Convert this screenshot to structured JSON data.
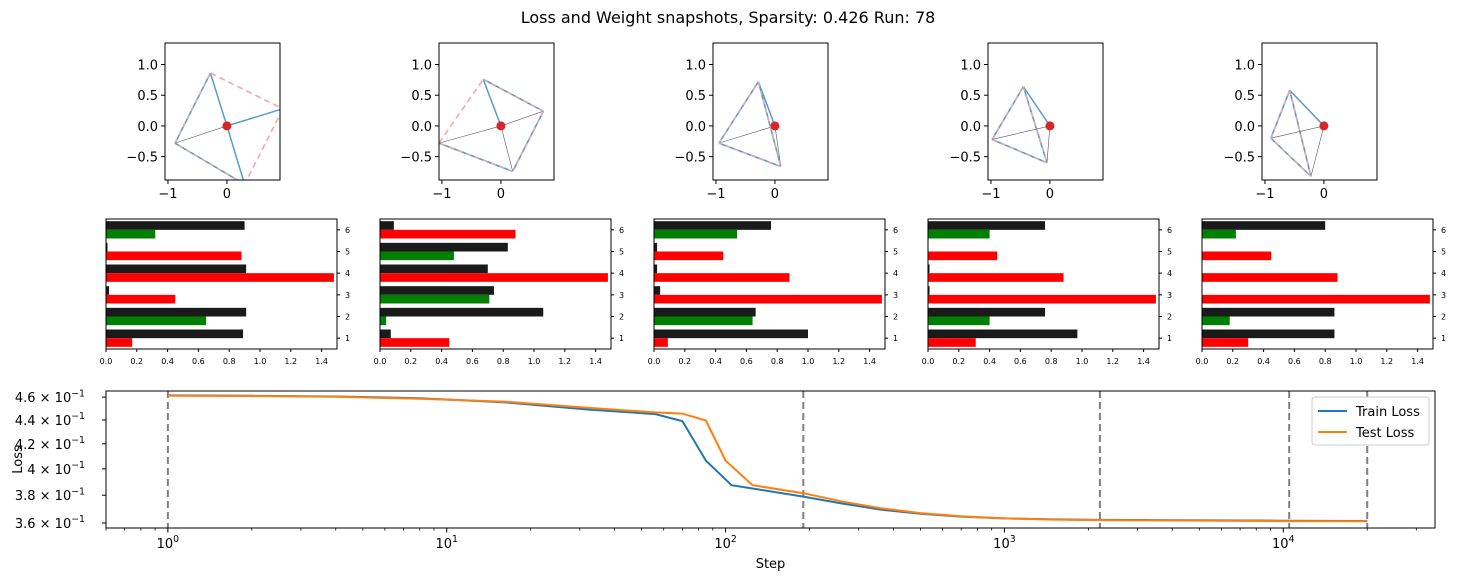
{
  "figure": {
    "title": "Loss and Weight snapshots, Sparsity: 0.426  Run: 78"
  },
  "chart_data": [
    {
      "type": "scatter",
      "name": "weight-polygon-snapshots",
      "xlim": [
        -1.05,
        0.9
      ],
      "ylim": [
        -0.88,
        1.35
      ],
      "xticks": [
        -1,
        0
      ],
      "yticks": [
        -0.5,
        0.0,
        0.5,
        1.0
      ],
      "ytick_labels": [
        "−0.5",
        "0.0",
        "0.5",
        "1.0"
      ],
      "xtick_labels": [
        "−1",
        "0"
      ],
      "colors": {
        "line": "#5b9bc9",
        "dashed": "#f7a6a6",
        "hub": "#d62728",
        "spoke": "#555555"
      },
      "snapshots": [
        {
          "points": [
            [
              -0.88,
              -0.28
            ],
            [
              -0.28,
              0.86
            ],
            [
              0.95,
              0.28
            ],
            [
              0.3,
              -0.95
            ]
          ],
          "dashed": [
            [
              1,
              2
            ],
            [
              2,
              3
            ]
          ],
          "solid": [
            [
              0,
              1
            ],
            [
              3,
              0
            ]
          ],
          "spokes_blue": [
            1,
            2,
            3
          ]
        },
        {
          "points": [
            [
              -1.05,
              -0.28
            ],
            [
              -0.3,
              0.76
            ],
            [
              0.72,
              0.24
            ],
            [
              0.2,
              -0.74
            ]
          ],
          "dashed": [
            [
              0,
              1
            ]
          ],
          "solid": [
            [
              1,
              2
            ],
            [
              2,
              3
            ],
            [
              3,
              0
            ]
          ],
          "spokes_blue": [
            1
          ]
        },
        {
          "points": [
            [
              -0.95,
              -0.28
            ],
            [
              -0.28,
              0.72
            ],
            [
              0.1,
              -0.66
            ]
          ],
          "dashed": [],
          "solid": [
            [
              0,
              1
            ],
            [
              1,
              2
            ],
            [
              2,
              0
            ]
          ],
          "spokes_blue": [
            1
          ]
        },
        {
          "points": [
            [
              -0.98,
              -0.22
            ],
            [
              -0.45,
              0.64
            ],
            [
              -0.05,
              -0.6
            ]
          ],
          "dashed": [],
          "solid": [
            [
              0,
              1
            ],
            [
              1,
              2
            ],
            [
              2,
              0
            ]
          ],
          "spokes_blue": [
            1
          ]
        },
        {
          "points": [
            [
              -0.9,
              -0.2
            ],
            [
              -0.58,
              0.58
            ],
            [
              -0.22,
              -0.82
            ]
          ],
          "dashed": [],
          "solid": [
            [
              0,
              1
            ],
            [
              1,
              2
            ],
            [
              2,
              0
            ]
          ],
          "spokes_blue": [
            1
          ]
        }
      ]
    },
    {
      "type": "bar",
      "name": "weight-bar-snapshots",
      "orientation": "horizontal",
      "xlim": [
        0,
        1.5
      ],
      "xticks": [
        0.0,
        0.2,
        0.4,
        0.6,
        0.8,
        1.0,
        1.2,
        1.4
      ],
      "xtick_labels": [
        "0.0",
        "0.2",
        "0.4",
        "0.6",
        "0.8",
        "1.0",
        "1.2",
        "1.4"
      ],
      "categories": [
        "1",
        "2",
        "3",
        "4",
        "5",
        "6"
      ],
      "series_colors": {
        "norm": "#1a1a1a",
        "positive": "#008000",
        "negative": "#ff0000"
      },
      "snapshots": [
        {
          "norm": [
            0.89,
            0.91,
            0.02,
            0.91,
            0.01,
            0.9
          ],
          "value": [
            0.17,
            0.65,
            0.45,
            1.48,
            0.88,
            0.32
          ],
          "sign": [
            "negative",
            "positive",
            "negative",
            "negative",
            "negative",
            "positive"
          ]
        },
        {
          "norm": [
            0.07,
            1.06,
            0.74,
            0.7,
            0.83,
            0.09
          ],
          "value": [
            0.45,
            0.04,
            0.71,
            1.48,
            0.48,
            0.88
          ],
          "sign": [
            "negative",
            "positive",
            "positive",
            "negative",
            "positive",
            "negative"
          ]
        },
        {
          "norm": [
            1.0,
            0.66,
            0.04,
            0.02,
            0.02,
            0.76
          ],
          "value": [
            0.09,
            0.64,
            1.48,
            0.88,
            0.45,
            0.54
          ],
          "sign": [
            "negative",
            "positive",
            "negative",
            "negative",
            "negative",
            "positive"
          ]
        },
        {
          "norm": [
            0.97,
            0.76,
            0.01,
            0.01,
            0.0,
            0.76
          ],
          "value": [
            0.31,
            0.4,
            1.48,
            0.88,
            0.45,
            0.4
          ],
          "sign": [
            "negative",
            "positive",
            "negative",
            "negative",
            "negative",
            "positive"
          ]
        },
        {
          "norm": [
            0.86,
            0.86,
            0.0,
            0.0,
            0.0,
            0.8
          ],
          "value": [
            0.3,
            0.18,
            1.48,
            0.88,
            0.45,
            0.22
          ],
          "sign": [
            "negative",
            "positive",
            "negative",
            "negative",
            "negative",
            "positive"
          ]
        }
      ]
    },
    {
      "type": "line",
      "name": "loss-curve",
      "xscale": "log",
      "yscale": "log",
      "xlabel": "Step",
      "ylabel": "Loss",
      "xlim": [
        0.6,
        35000
      ],
      "ylim": [
        0.3565,
        0.4655
      ],
      "xticks": [
        1,
        10,
        100,
        1000,
        10000
      ],
      "xtick_labels": [
        [
          "10",
          "0"
        ],
        [
          "10",
          "1"
        ],
        [
          "10",
          "2"
        ],
        [
          "10",
          "3"
        ],
        [
          "10",
          "4"
        ]
      ],
      "yticks": [
        0.36,
        0.38,
        0.4,
        0.42,
        0.44,
        0.46
      ],
      "ytick_labels": [
        [
          "3.6 × 10",
          "−1"
        ],
        [
          "3.8 × 10",
          "−1"
        ],
        [
          "4 × 10",
          "−1"
        ],
        [
          "4.2 × 10",
          "−1"
        ],
        [
          "4.4 × 10",
          "−1"
        ],
        [
          "4.6 × 10",
          "−1"
        ]
      ],
      "snapshot_steps": [
        1,
        190,
        2200,
        10500,
        20000
      ],
      "legend": "top-right",
      "series": [
        {
          "name": "Train Loss",
          "color": "#1f77b4",
          "x": [
            1,
            2,
            4,
            8,
            16,
            32,
            56,
            70,
            85,
            105,
            130,
            190,
            260,
            360,
            500,
            700,
            1000,
            1500,
            2200,
            3500,
            6000,
            10000,
            20000
          ],
          "y": [
            0.4615,
            0.4612,
            0.4605,
            0.459,
            0.4555,
            0.449,
            0.445,
            0.439,
            0.4065,
            0.3875,
            0.3845,
            0.379,
            0.374,
            0.3695,
            0.3665,
            0.3645,
            0.3632,
            0.3625,
            0.3622,
            0.362,
            0.3618,
            0.3616,
            0.3614
          ]
        },
        {
          "name": "Test Loss",
          "color": "#ff7f0e",
          "x": [
            1,
            2,
            4,
            8,
            16,
            32,
            56,
            70,
            85,
            100,
            125,
            190,
            260,
            360,
            500,
            700,
            1000,
            1500,
            2200,
            3500,
            6000,
            10000,
            20000
          ],
          "y": [
            0.4612,
            0.461,
            0.4603,
            0.4585,
            0.456,
            0.4505,
            0.4465,
            0.4455,
            0.4395,
            0.4065,
            0.3875,
            0.3815,
            0.3755,
            0.3705,
            0.367,
            0.3648,
            0.3632,
            0.3624,
            0.362,
            0.3618,
            0.3615,
            0.3613,
            0.3612
          ]
        }
      ]
    }
  ]
}
